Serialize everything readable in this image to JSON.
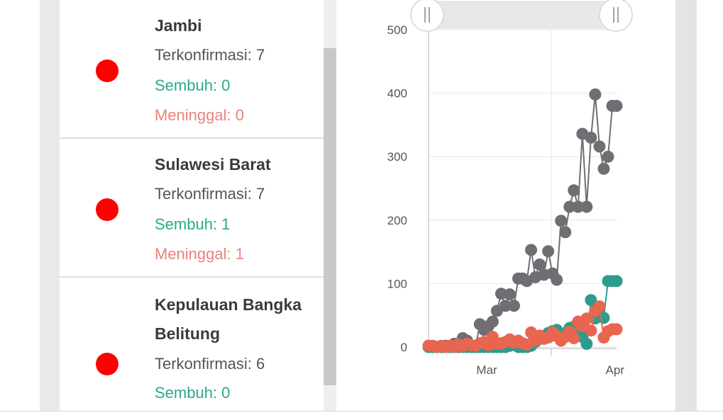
{
  "regions": [
    {
      "name": "Jambi",
      "confirmed_label": "Terkonfirmasi: 7",
      "recovered_label": "Sembuh: 0",
      "deaths_label": "Meninggal: 0",
      "status_color": "#ff0000"
    },
    {
      "name": "Sulawesi Barat",
      "confirmed_label": "Terkonfirmasi: 7",
      "recovered_label": "Sembuh: 1",
      "deaths_label": "Meninggal: 1",
      "status_color": "#ff0000"
    },
    {
      "name_line1": "Kepulauan Bangka",
      "name_line2": "Belitung",
      "confirmed_label": "Terkonfirmasi: 6",
      "recovered_label": "Sembuh: 0",
      "status_color": "#ff0000"
    }
  ],
  "chart_data": {
    "type": "line",
    "ylim": [
      0,
      500
    ],
    "y_ticks": [
      "0",
      "100",
      "200",
      "300",
      "400",
      "500"
    ],
    "x_ticks": [
      "Mar",
      "Apr"
    ],
    "x": [
      1,
      2,
      3,
      4,
      5,
      6,
      7,
      8,
      9,
      10,
      11,
      12,
      13,
      14,
      15,
      16,
      17,
      18,
      19,
      20,
      21,
      22,
      23,
      24,
      25,
      26,
      27,
      28,
      29,
      30,
      31,
      32,
      33,
      34,
      35,
      36,
      37,
      38,
      39,
      40,
      41,
      42,
      43,
      44,
      45
    ],
    "series": [
      {
        "color": "#6e6e73",
        "values": [
          2,
          0,
          0,
          0,
          2,
          0,
          5,
          0,
          14,
          10,
          2,
          0,
          36,
          27,
          33,
          40,
          57,
          84,
          65,
          83,
          65,
          108,
          108,
          104,
          153,
          110,
          130,
          114,
          151,
          116,
          106,
          199,
          181,
          221,
          247,
          221,
          336,
          221,
          330,
          398,
          316,
          281,
          300,
          380,
          380
        ]
      },
      {
        "color": "#2e9c8c",
        "values": [
          0,
          0,
          0,
          0,
          0,
          0,
          0,
          0,
          0,
          0,
          0,
          0,
          0,
          0,
          0,
          0,
          0,
          0,
          0,
          2,
          5,
          0,
          0,
          0,
          2,
          8,
          13,
          17,
          22,
          25,
          27,
          20,
          22,
          30,
          32,
          26,
          16,
          5,
          74,
          45,
          60,
          46,
          104,
          104,
          104
        ]
      },
      {
        "color": "#e8654f",
        "values": [
          2,
          2,
          0,
          2,
          0,
          2,
          0,
          4,
          1,
          5,
          3,
          2,
          6,
          8,
          3,
          16,
          5,
          6,
          8,
          12,
          7,
          10,
          6,
          4,
          23,
          10,
          18,
          13,
          15,
          23,
          17,
          10,
          16,
          24,
          14,
          40,
          33,
          45,
          26,
          57,
          64,
          15,
          25,
          28,
          28
        ]
      }
    ]
  },
  "colors": {
    "confirmed_text": "#555555",
    "recovered_text": "#2aa98a",
    "deaths_text": "#e7847a",
    "slider_track": "#e8e8e8"
  }
}
